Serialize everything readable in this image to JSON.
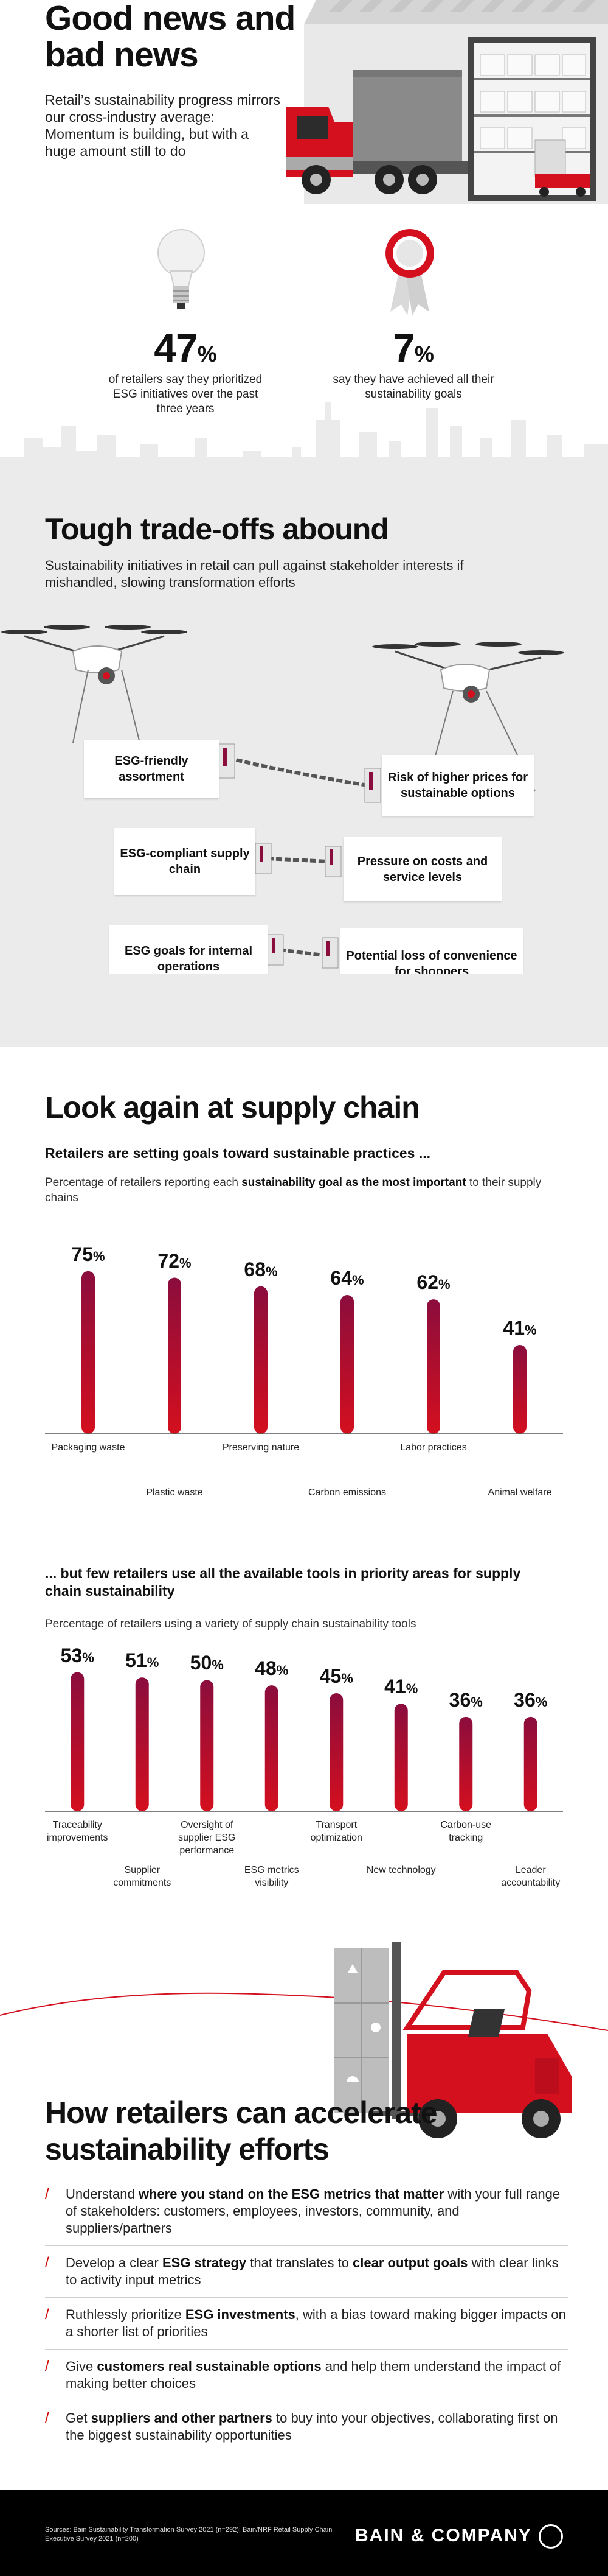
{
  "section1": {
    "title": "Good news and bad news",
    "subtitle": "Retail’s sustainability progress mirrors our cross-industry average: Momentum is building, but with a huge amount still to do",
    "stats": [
      {
        "value": "47",
        "unit": "%",
        "label": "of retailers say they prioritized ESG initiatives over the past three years",
        "icon": "light-bulb-icon"
      },
      {
        "value": "7",
        "unit": "%",
        "label": "say they have achieved all their sustainability goals",
        "icon": "award-ribbon-icon"
      }
    ]
  },
  "section2": {
    "title": "Tough trade-offs abound",
    "subtitle": "Sustainability initiatives in retail can pull against stakeholder interests if mishandled, slowing transformation efforts",
    "tradeoffs": [
      {
        "left": "ESG-friendly assortment",
        "right": "Risk of higher prices for sustainable options"
      },
      {
        "left": "ESG-compliant supply chain",
        "right": "Pressure on costs and service levels"
      },
      {
        "left": "ESG goals for internal operations",
        "right": "Potential loss of convenience for shoppers"
      }
    ]
  },
  "section3": {
    "title": "Look again at supply chain",
    "chart1_title": "Retailers are setting goals toward sustainable practices ...",
    "chart1_sub_a": "Percentage of retailers reporting each ",
    "chart1_sub_b": "sustainability goal as the most important",
    "chart1_sub_c": " to their supply chains",
    "chart2_title": "... but few retailers use all the available tools in priority areas for supply chain sustainability",
    "chart2_sub": "Percentage of retailers using a variety of supply chain sustainability tools"
  },
  "chart_data": [
    {
      "type": "bar",
      "categories": [
        "Packaging waste",
        "Plastic waste",
        "Preserving nature",
        "Carbon emissions",
        "Labor practices",
        "Animal welfare"
      ],
      "values": [
        75,
        72,
        68,
        64,
        62,
        41
      ],
      "unit": "%",
      "ylim": [
        0,
        80
      ]
    },
    {
      "type": "bar",
      "categories": [
        "Traceability improvements",
        "Supplier commitments",
        "Oversight of supplier ESG performance",
        "ESG metrics visibility",
        "Transport optimization",
        "New technology",
        "Carbon-use tracking",
        "Leader accountability"
      ],
      "values": [
        53,
        51,
        50,
        48,
        45,
        41,
        36,
        36
      ],
      "unit": "%",
      "ylim": [
        0,
        58
      ]
    }
  ],
  "section4": {
    "title": "How retailers can accelerate sustainability efforts",
    "tips": [
      [
        "Understand ",
        "where you stand on the ESG metrics that matter",
        " with your full range of stakeholders: customers, employees, investors, community, and suppliers/partners",
        "",
        ""
      ],
      [
        "Develop a clear ",
        "ESG strategy",
        " that translates to ",
        "clear output goals",
        " with clear links to activity input metrics"
      ],
      [
        "Ruthlessly prioritize ",
        "ESG investments",
        ", with a bias toward making bigger impacts on a shorter list of priorities",
        "",
        ""
      ],
      [
        "Give ",
        "customers real sustainable options",
        " and help them understand the impact of making better choices",
        "",
        ""
      ],
      [
        "Get ",
        "suppliers and other partners",
        " to buy into your objectives, collaborating first on the biggest sustainability opportunities",
        "",
        ""
      ]
    ],
    "slash": "/"
  },
  "footer": {
    "sources": "Sources: Bain Sustainability Transformation Survey 2021 (n=292); Bain/NRF Retail Supply Chain Executive Survey 2021 (n=200)",
    "brand": "BAIN & COMPANY"
  },
  "colors": {
    "accent": "#cc0000",
    "bar_top": "#8b0d3d",
    "bar_bottom": "#d40f1e",
    "panel": "#ebebeb"
  }
}
